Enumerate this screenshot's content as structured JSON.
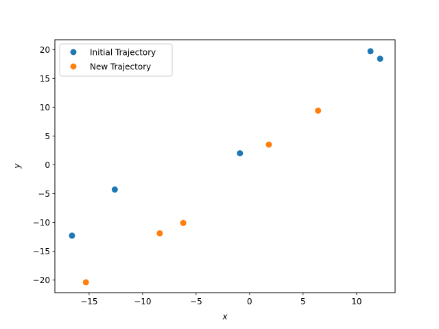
{
  "chart_data": {
    "type": "scatter",
    "title": "",
    "xlabel": "x",
    "ylabel": "y",
    "xlim": [
      -18.2,
      13.6
    ],
    "ylim": [
      -22.2,
      21.7
    ],
    "xticks": [
      -15,
      -10,
      -5,
      0,
      5,
      10
    ],
    "xtick_labels": [
      "−15",
      "−10",
      "−5",
      "0",
      "5",
      "10"
    ],
    "yticks": [
      -20,
      -15,
      -10,
      -5,
      0,
      5,
      10,
      15,
      20
    ],
    "ytick_labels": [
      "−20",
      "−15",
      "−10",
      "−5",
      "0",
      "5",
      "10",
      "15",
      "20"
    ],
    "grid": false,
    "legend_position": "top-left",
    "series": [
      {
        "name": "Initial Trajectory",
        "color": "#1f77b4",
        "points": [
          {
            "x": -16.6,
            "y": -12.3
          },
          {
            "x": -12.6,
            "y": -4.3
          },
          {
            "x": -0.9,
            "y": 2.0
          },
          {
            "x": 11.3,
            "y": 19.7
          },
          {
            "x": 12.2,
            "y": 18.4
          }
        ]
      },
      {
        "name": "New Trajectory",
        "color": "#ff7f0e",
        "points": [
          {
            "x": -15.3,
            "y": -20.4
          },
          {
            "x": -8.4,
            "y": -11.9
          },
          {
            "x": -6.2,
            "y": -10.1
          },
          {
            "x": 1.8,
            "y": 3.5
          },
          {
            "x": 6.4,
            "y": 9.4
          }
        ]
      }
    ]
  }
}
